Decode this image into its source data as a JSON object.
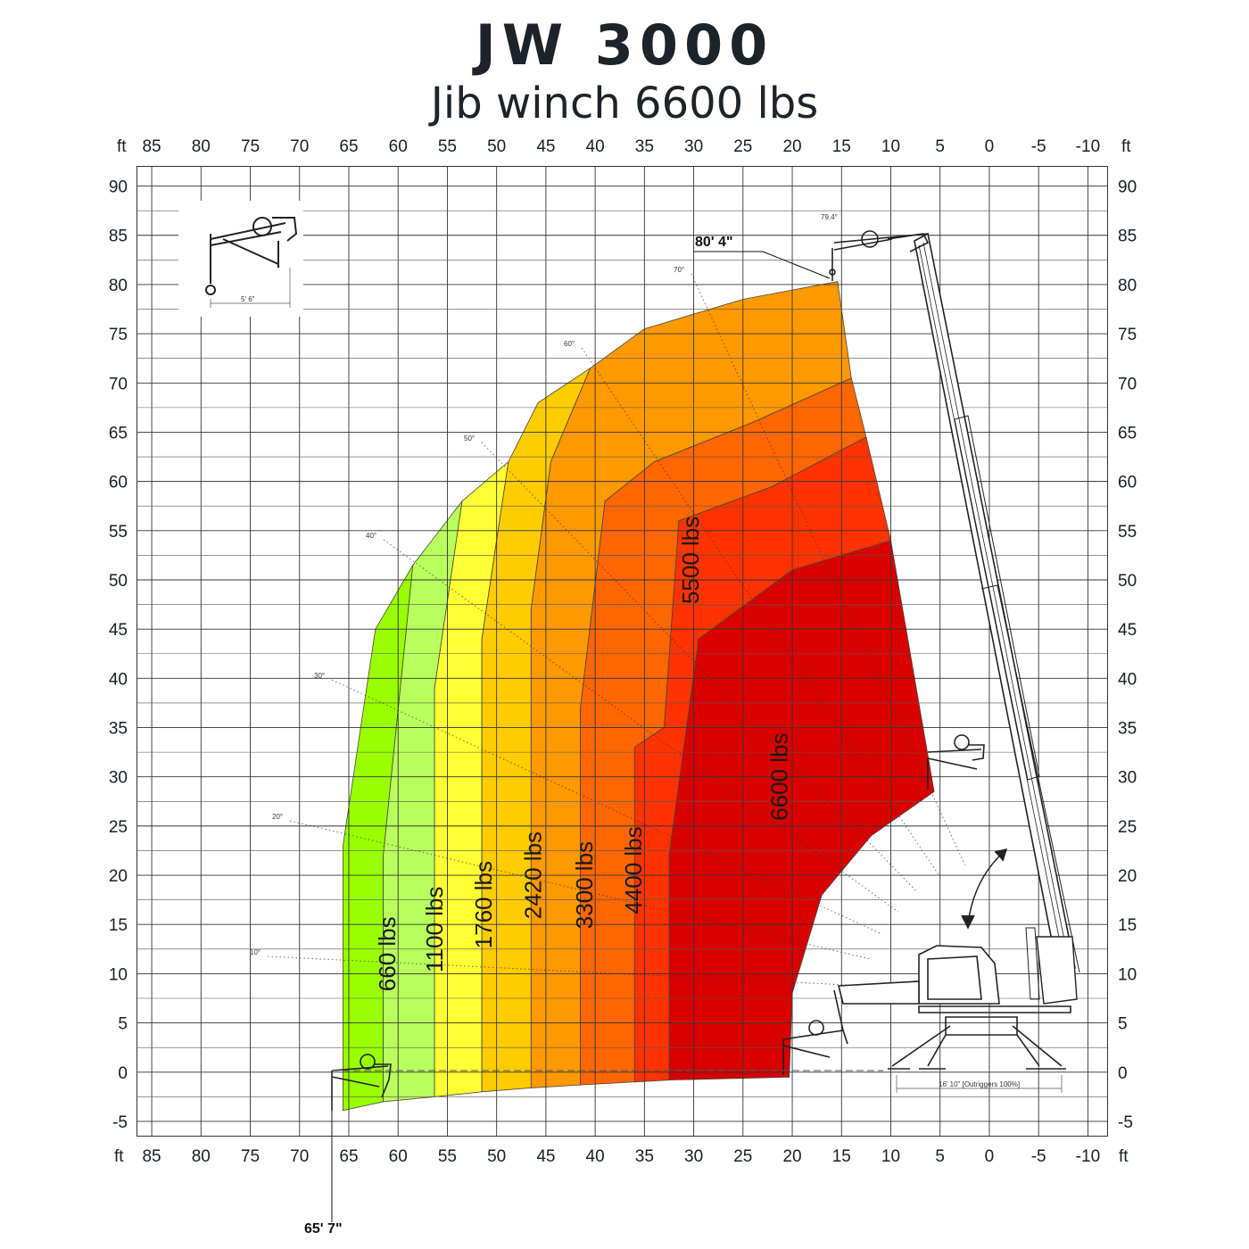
{
  "title": "JW 3000",
  "subtitle": "Jib winch 6600 lbs",
  "chart_data": {
    "type": "area",
    "x_unit": "ft",
    "y_unit": "ft",
    "xlim": [
      85,
      -10
    ],
    "ylim": [
      -5,
      90
    ],
    "x_ticks": [
      "85",
      "80",
      "75",
      "70",
      "65",
      "60",
      "55",
      "50",
      "45",
      "40",
      "35",
      "30",
      "25",
      "20",
      "15",
      "10",
      "5",
      "0",
      "-5",
      "-10"
    ],
    "y_ticks": [
      "90",
      "85",
      "80",
      "75",
      "70",
      "65",
      "60",
      "55",
      "50",
      "45",
      "40",
      "35",
      "30",
      "25",
      "20",
      "15",
      "10",
      "5",
      "0",
      "-5"
    ],
    "grid": true,
    "zones": [
      {
        "label": "660 lbs",
        "color": "#99ff00",
        "outline": [
          [
            65.6,
            -3.9
          ],
          [
            65.6,
            23
          ],
          [
            62.3,
            45
          ],
          [
            58.5,
            51.5
          ],
          [
            61.5,
            22
          ],
          [
            61.5,
            -3.0
          ]
        ]
      },
      {
        "label": "1100 lbs",
        "color": "#b8ff5c",
        "outline": [
          [
            61.5,
            -3.0
          ],
          [
            61.5,
            22
          ],
          [
            58.5,
            51.5
          ],
          [
            53.5,
            58
          ],
          [
            56.3,
            39
          ],
          [
            56.3,
            -2.5
          ]
        ]
      },
      {
        "label": "1760 lbs",
        "color": "#ffff33",
        "outline": [
          [
            56.3,
            -2.5
          ],
          [
            56.3,
            39
          ],
          [
            53.5,
            58
          ],
          [
            48.8,
            62
          ],
          [
            51.5,
            44
          ],
          [
            51.5,
            -2.0
          ]
        ]
      },
      {
        "label": "2420 lbs",
        "color": "#ffcc00",
        "outline": [
          [
            51.5,
            -2.0
          ],
          [
            51.5,
            44
          ],
          [
            48.8,
            62
          ],
          [
            45.8,
            68
          ],
          [
            40.5,
            71.5
          ],
          [
            44.5,
            62
          ],
          [
            46.5,
            47
          ],
          [
            46.5,
            -1.6
          ]
        ]
      },
      {
        "label": "3300 lbs",
        "color": "#ff9900",
        "outline": [
          [
            46.5,
            -1.6
          ],
          [
            46.5,
            47
          ],
          [
            44.5,
            62
          ],
          [
            40.5,
            71.5
          ],
          [
            35,
            75.5
          ],
          [
            25,
            78.5
          ],
          [
            15.4,
            80.3
          ],
          [
            14.0,
            70.5
          ],
          [
            24,
            66
          ],
          [
            34,
            62
          ],
          [
            39,
            58
          ],
          [
            41.5,
            37
          ],
          [
            41.5,
            -1.3
          ]
        ]
      },
      {
        "label": "4400 lbs",
        "color": "#ff6600",
        "outline": [
          [
            41.5,
            -1.3
          ],
          [
            41.5,
            37
          ],
          [
            39,
            58
          ],
          [
            34,
            62
          ],
          [
            24,
            66
          ],
          [
            14.0,
            70.5
          ],
          [
            12.5,
            64.5
          ],
          [
            22,
            59.5
          ],
          [
            31.5,
            56
          ],
          [
            33,
            35
          ],
          [
            36,
            33
          ],
          [
            36,
            -1.0
          ]
        ]
      },
      {
        "label": "5500 lbs",
        "color": "#ff3300",
        "outline": [
          [
            36,
            -1.0
          ],
          [
            36,
            33
          ],
          [
            33,
            35
          ],
          [
            31.5,
            56
          ],
          [
            22,
            59.5
          ],
          [
            12.5,
            64.5
          ],
          [
            10.0,
            54
          ],
          [
            20,
            51
          ],
          [
            29.5,
            44
          ],
          [
            32.5,
            22
          ],
          [
            32.5,
            -0.8
          ]
        ]
      },
      {
        "label": "6600 lbs",
        "color": "#d90000",
        "outline": [
          [
            32.5,
            -0.8
          ],
          [
            32.5,
            22
          ],
          [
            29.5,
            44
          ],
          [
            20,
            51
          ],
          [
            10.0,
            54
          ],
          [
            5.6,
            28.5
          ],
          [
            12,
            24
          ],
          [
            17,
            18
          ],
          [
            20,
            8
          ],
          [
            20.3,
            -0.5
          ]
        ]
      }
    ],
    "max_height_label": "80' 4\"",
    "max_reach_label": "65' 7\"",
    "boom_angle_label": "79,4°",
    "angle_labels": [
      "10°",
      "20°",
      "30°",
      "40°",
      "50°",
      "60°",
      "70°"
    ],
    "inset_dimension_label": "5' 6\"",
    "outrigger_label": "16' 10\" [Outriggers 100%]"
  }
}
